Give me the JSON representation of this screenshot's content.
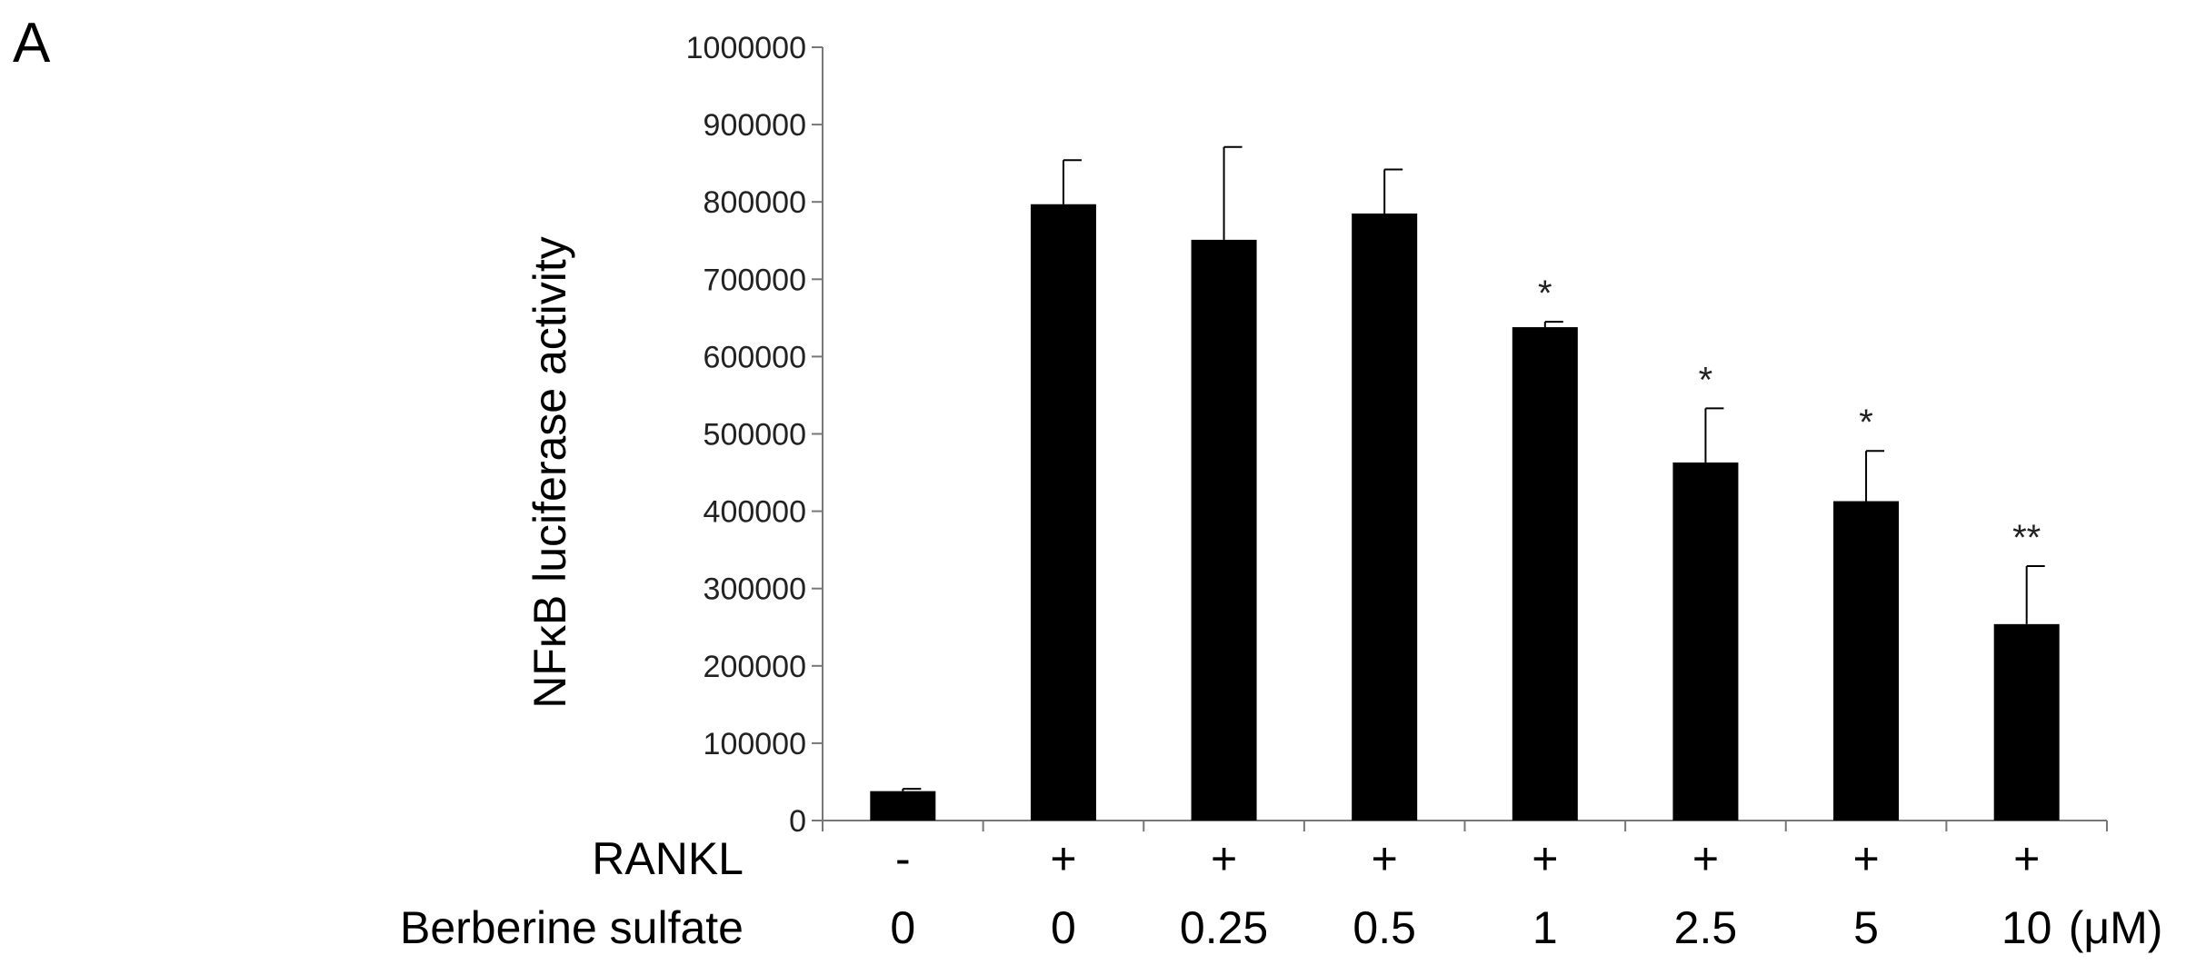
{
  "panel_label": "A",
  "chart_data": {
    "type": "bar",
    "title": "",
    "xlabel": "",
    "ylabel": "NFκB luciferase activity",
    "ylim": [
      0,
      1000000
    ],
    "yticks": [
      0,
      100000,
      200000,
      300000,
      400000,
      500000,
      600000,
      700000,
      800000,
      900000,
      1000000
    ],
    "categories": [
      "0",
      "0",
      "0.25",
      "0.5",
      "1",
      "2.5",
      "5",
      "10"
    ],
    "series": [
      {
        "values": [
          38000,
          797000,
          751000,
          785000,
          638000,
          463000,
          413000,
          254000
        ],
        "errors": [
          3000,
          57000,
          120000,
          57000,
          7000,
          70000,
          65000,
          75000
        ],
        "color": "#000000"
      }
    ],
    "significance": [
      "",
      "",
      "",
      "",
      "*",
      "*",
      "*",
      "**"
    ],
    "conditions": [
      {
        "label": "RANKL",
        "values": [
          "-",
          "+",
          "+",
          "+",
          "+",
          "+",
          "+",
          "+"
        ],
        "unit": ""
      },
      {
        "label": "Berberine sulfate",
        "values": [
          "0",
          "0",
          "0.25",
          "0.5",
          "1",
          "2.5",
          "5",
          "10"
        ],
        "unit": "(μM)"
      }
    ],
    "grid": false,
    "legend": "none"
  }
}
